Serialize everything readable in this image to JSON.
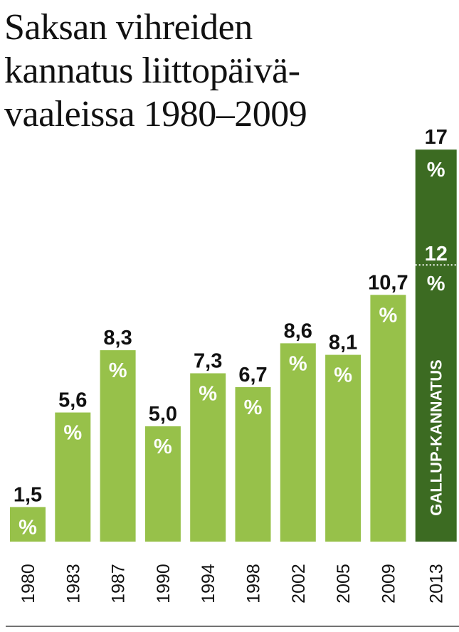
{
  "chart_data": {
    "type": "bar",
    "title": "Saksan vihreiden kannatus liittopäivä-vaaleissa 1980–2009",
    "title_lines": [
      "Saksan vihreiden",
      "kannatus liittopäivä-",
      "vaaleissa 1980–2009"
    ],
    "categories": [
      "1980",
      "1983",
      "1987",
      "1990",
      "1994",
      "1998",
      "2002",
      "2005",
      "2009",
      "2013"
    ],
    "values": [
      1.5,
      5.6,
      8.3,
      5.0,
      7.3,
      6.7,
      8.6,
      8.1,
      10.7,
      17
    ],
    "value_labels": [
      "1,5",
      "5,6",
      "8,3",
      "5,0",
      "7,3",
      "6,7",
      "8,6",
      "8,1",
      "10,7",
      "17"
    ],
    "percent_sign": "%",
    "poll": {
      "category": "2013",
      "high": 17,
      "high_label": "17",
      "low": 12,
      "low_label": "12",
      "label": "GALLUP-KANNATUS"
    },
    "ylim": [
      0,
      17
    ],
    "grid": false,
    "colors": {
      "bar": "#97c14a",
      "poll_bar": "#3c6b22",
      "text": "#111111",
      "label_on_bar": "#ffffff"
    }
  }
}
